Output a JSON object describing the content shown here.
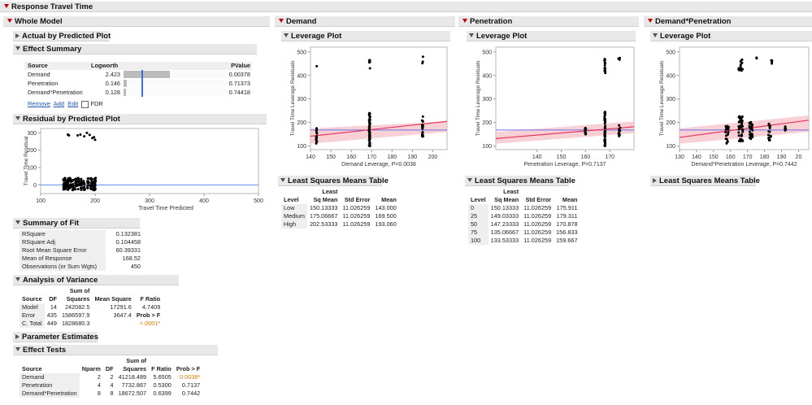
{
  "report": {
    "title": "Response Travel Time",
    "whole_model": "Whole Model",
    "actual_by_predicted": "Actual by Predicted Plot",
    "effect_summary": {
      "title": "Effect Summary",
      "headers": [
        "Source",
        "Logworth",
        "PValue"
      ],
      "rows": [
        {
          "source": "Demand",
          "logworth": "2.423",
          "pvalue": "0.00378",
          "bar": 0.62
        },
        {
          "source": "Penetration",
          "logworth": "0.146",
          "pvalue": "0.71373",
          "bar": 0.04
        },
        {
          "source": "Demand*Penetration",
          "logworth": "0.128",
          "pvalue": "0.74418",
          "bar": 0.03
        }
      ],
      "links": [
        "Remove",
        "Add",
        "Edit"
      ],
      "fdr_label": "FDR"
    },
    "residual_plot": {
      "title": "Residual by Predicted Plot",
      "ylabel": "Travel Time Residual",
      "xlabel": "Travel Time Predicted",
      "xticks": [
        "100",
        "200",
        "300",
        "400",
        "500"
      ],
      "yticks": [
        "300",
        "200",
        "100",
        "0"
      ]
    },
    "summary_of_fit": {
      "title": "Summary of Fit",
      "rows": [
        {
          "label": "RSquare",
          "value": "0.132381"
        },
        {
          "label": "RSquare Adj",
          "value": "0.104458"
        },
        {
          "label": "Root Mean Square Error",
          "value": "60.39331"
        },
        {
          "label": "Mean of Response",
          "value": "168.52"
        },
        {
          "label": "Observations (or Sum Wgts)",
          "value": "450"
        }
      ]
    },
    "anova": {
      "title": "Analysis of Variance",
      "head1": [
        "",
        "",
        "Sum of",
        "",
        ""
      ],
      "head2": [
        "Source",
        "DF",
        "Squares",
        "Mean Square",
        "F Ratio"
      ],
      "rows": [
        [
          "Model",
          "14",
          "242082.5",
          "17291.6",
          "4.7409"
        ],
        [
          "Error",
          "435",
          "1586597.9",
          "3647.4",
          "Prob > F"
        ],
        [
          "C. Total",
          "449",
          "1828680.3",
          "",
          "<.0001*"
        ]
      ]
    },
    "parameter_estimates": "Parameter Estimates",
    "effect_tests": {
      "title": "Effect Tests",
      "head1": [
        "",
        "",
        "",
        "Sum of",
        "",
        ""
      ],
      "head2": [
        "Source",
        "Nparm",
        "DF",
        "Squares",
        "F Ratio",
        "Prob > F"
      ],
      "rows": [
        [
          "Demand",
          "2",
          "2",
          "41218.489",
          "5.6505",
          "0.0038*"
        ],
        [
          "Penetration",
          "4",
          "4",
          "7732.867",
          "0.5300",
          "0.7137"
        ],
        [
          "Demand*Penetration",
          "8",
          "8",
          "18672.507",
          "0.6399",
          "0.7442"
        ]
      ]
    },
    "demand": {
      "title": "Demand",
      "leverage_title": "Leverage Plot",
      "ylabel": "Travel Time Leverage Residuals",
      "xlabel": "Demand Leverage, P=0.0038",
      "xticks": [
        "140",
        "150",
        "160",
        "170",
        "180",
        "190",
        "200"
      ],
      "yticks": [
        "500",
        "400",
        "300",
        "200",
        "100"
      ],
      "lsm_title": "Least Squares Means Table",
      "lsm_head1": [
        "",
        "Least",
        "",
        ""
      ],
      "lsm_head2": [
        "Level",
        "Sq Mean",
        "Std Error",
        "Mean"
      ],
      "lsm_rows": [
        [
          "Low",
          "150.13333",
          "11.026259",
          "143.000"
        ],
        [
          "Medium",
          "175.06667",
          "11.026259",
          "169.500"
        ],
        [
          "High",
          "202.53333",
          "11.026259",
          "193.060"
        ]
      ]
    },
    "penetration": {
      "title": "Penetration",
      "leverage_title": "Leverage Plot",
      "ylabel": "Travel Time Leverage Residuals",
      "xlabel": "Penetration Leverage, P=0.7137",
      "xticks": [
        "140",
        "150",
        "160",
        "170"
      ],
      "yticks": [
        "500",
        "400",
        "300",
        "200",
        "100"
      ],
      "lsm_title": "Least Squares Means Table",
      "lsm_head1": [
        "",
        "Least",
        "",
        ""
      ],
      "lsm_head2": [
        "Level",
        "Sq Mean",
        "Std Error",
        "Mean"
      ],
      "lsm_rows": [
        [
          "0",
          "150.13333",
          "11.026259",
          "175.911"
        ],
        [
          "25",
          "149.03333",
          "11.026259",
          "179.311"
        ],
        [
          "50",
          "147.23333",
          "11.026259",
          "170.878"
        ],
        [
          "75",
          "135.06667",
          "11.026259",
          "156.833"
        ],
        [
          "100",
          "133.53333",
          "11.026259",
          "159.667"
        ]
      ]
    },
    "demand_penetration": {
      "title": "Demand*Penetration",
      "leverage_title": "Leverage Plot",
      "ylabel": "Travel Time Leverage Residuals",
      "xlabel": "Demand*Penetration Leverage, P=0.7442",
      "xticks": [
        "130",
        "140",
        "150",
        "160",
        "170",
        "180",
        "190",
        "20"
      ],
      "yticks": [
        "500",
        "400",
        "300",
        "200",
        "100"
      ],
      "lsm_title": "Least Squares Means Table"
    }
  },
  "colors": {
    "accent_red": "#c00000",
    "mean_line": "#6f6fe6",
    "fit_line": "#e8365a",
    "band": "#f6c1c9",
    "zero_line": "#5a8ee6",
    "sig_orange": "#e07b00"
  }
}
